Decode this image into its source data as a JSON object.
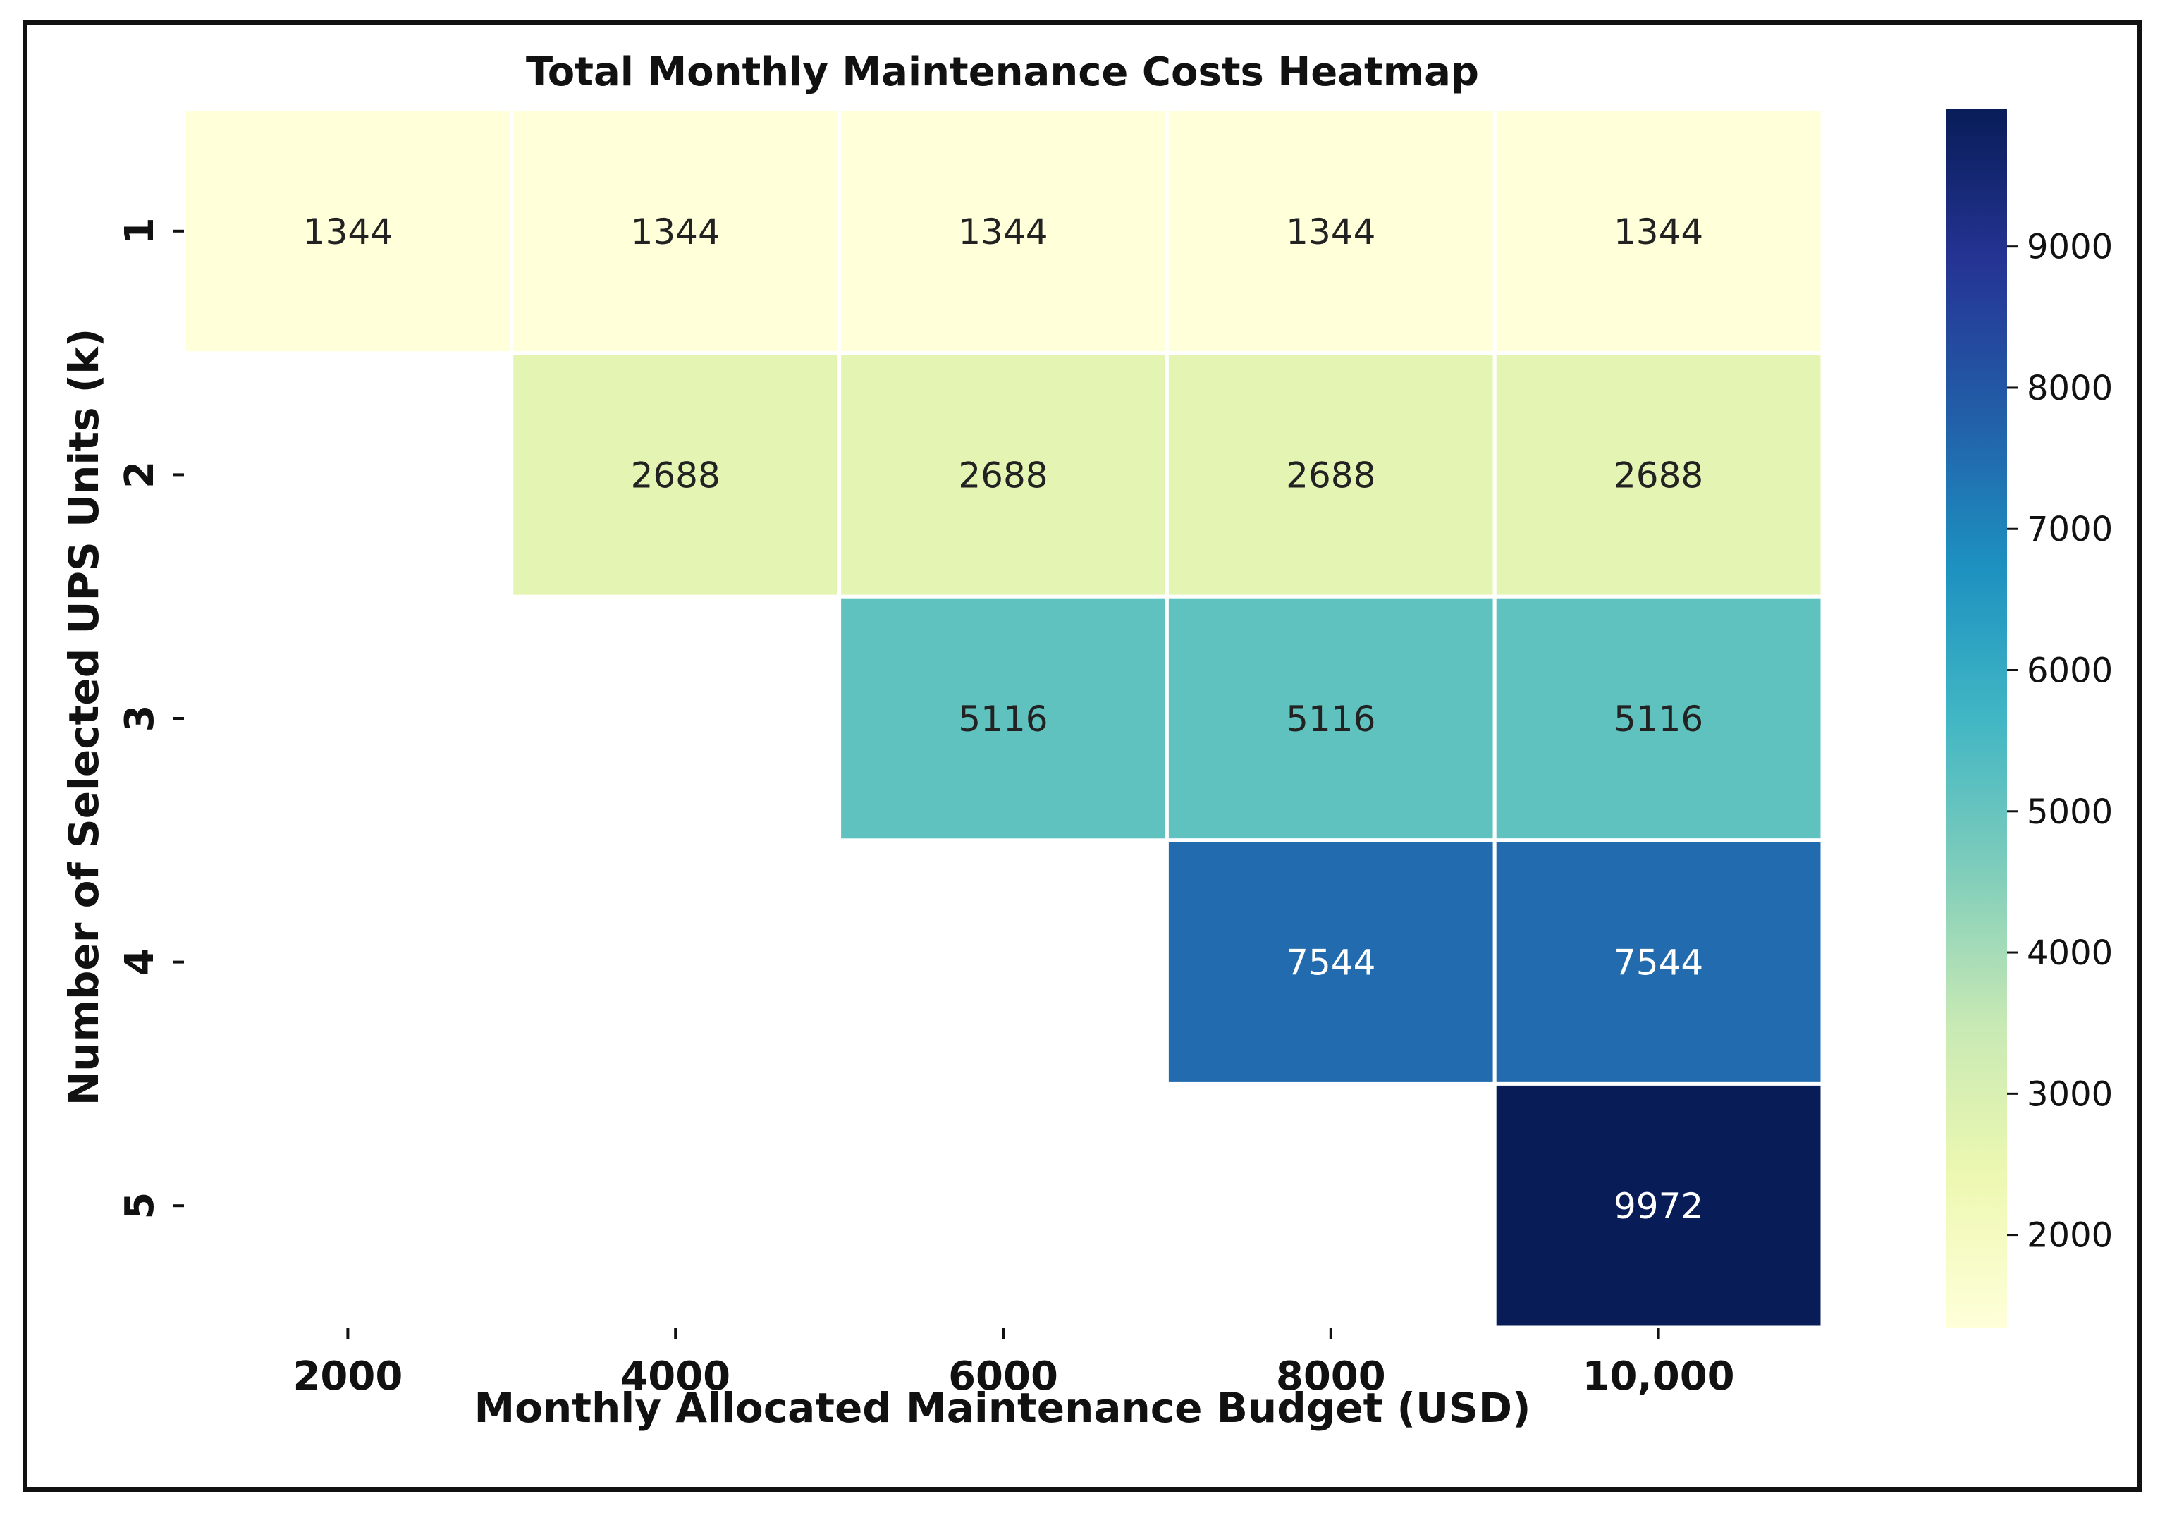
{
  "chart_data": {
    "type": "heatmap",
    "title": "Total Monthly Maintenance Costs Heatmap",
    "xlabel": "Monthly Allocated Maintenance Budget (USD)",
    "ylabel": "Number of Selected UPS Units (k)",
    "x_categories": [
      "2000",
      "4000",
      "6000",
      "8000",
      "10,000"
    ],
    "y_categories": [
      "1",
      "2",
      "3",
      "4",
      "5"
    ],
    "values": [
      [
        1344,
        1344,
        1344,
        1344,
        1344
      ],
      [
        null,
        2688,
        2688,
        2688,
        2688
      ],
      [
        null,
        null,
        5116,
        5116,
        5116
      ],
      [
        null,
        null,
        null,
        7544,
        7544
      ],
      [
        null,
        null,
        null,
        null,
        9972
      ]
    ],
    "colormap": "YlGnBu",
    "colorbar": {
      "range": [
        1344,
        9972
      ],
      "ticks": [
        2000,
        3000,
        4000,
        5000,
        6000,
        7000,
        8000,
        9000
      ],
      "placement": "right"
    }
  }
}
